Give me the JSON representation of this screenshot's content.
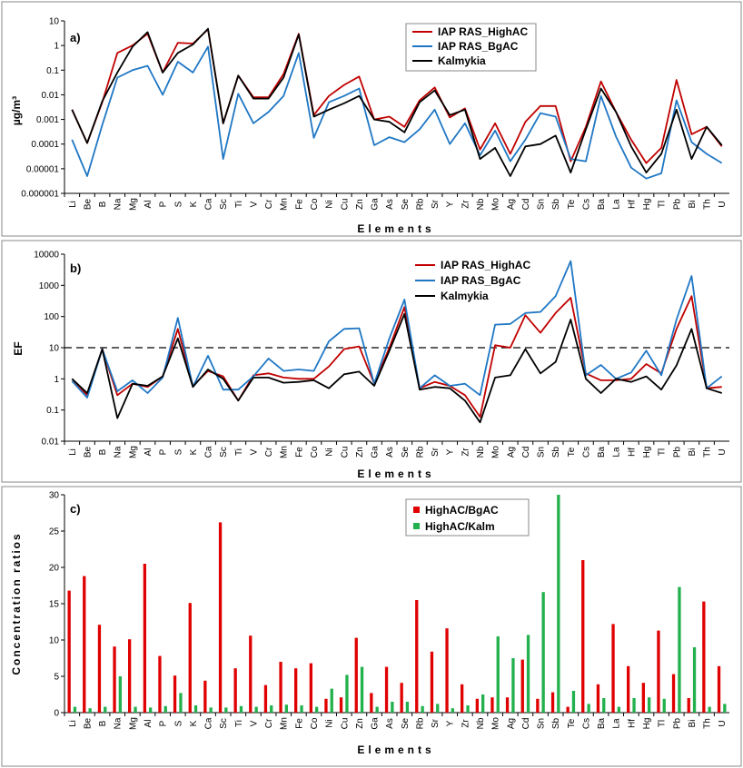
{
  "elements": [
    "Li",
    "Be",
    "B",
    "Na",
    "Mg",
    "Al",
    "P",
    "S",
    "K",
    "Ca",
    "Sc",
    "Ti",
    "V",
    "Cr",
    "Mn",
    "Fe",
    "Co",
    "Ni",
    "Cu",
    "Zn",
    "Ga",
    "As",
    "Se",
    "Rb",
    "Sr",
    "Y",
    "Zr",
    "Nb",
    "Mo",
    "Ag",
    "Cd",
    "Sn",
    "Sb",
    "Te",
    "Cs",
    "Ba",
    "La",
    "Hf",
    "Hg",
    "Tl",
    "Pb",
    "Bi",
    "Th",
    "U"
  ],
  "colors": {
    "high": "#c00000",
    "bg": "#1f77c4",
    "kalm": "#000000",
    "ratio1": "#e00000",
    "ratio2": "#22b14c"
  },
  "chart_data": [
    {
      "type": "line",
      "panel_label": "a)",
      "xlabel": "Elements",
      "ylabel": "µg/m³",
      "yscale": "log",
      "ylim": [
        1e-06,
        10
      ],
      "yticks": [
        "0.000001",
        "0.00001",
        "0.0001",
        "0.001",
        "0.01",
        "0.1",
        "1",
        "10"
      ],
      "legend_position": "top-right",
      "series": [
        {
          "name": "IAP RAS_HighAC",
          "color_key": "high",
          "values": [
            0.0025,
            0.00011,
            0.005,
            0.5,
            1.0,
            3.0,
            0.08,
            1.3,
            1.2,
            4.5,
            0.0007,
            0.06,
            0.008,
            0.008,
            0.07,
            3.0,
            0.0015,
            0.009,
            0.025,
            0.055,
            0.001,
            0.0013,
            0.0005,
            0.006,
            0.02,
            0.0012,
            0.0028,
            6e-05,
            0.0007,
            4e-05,
            0.0008,
            0.0035,
            0.0035,
            2e-05,
            0.0005,
            0.035,
            0.002,
            0.00015,
            1.7e-05,
            7e-05,
            0.04,
            0.00025,
            0.0005,
            8e-05
          ]
        },
        {
          "name": "IAP RAS_BgAC",
          "color_key": "bg",
          "values": [
            0.00015,
            5e-06,
            0.0006,
            0.05,
            0.1,
            0.15,
            0.01,
            0.22,
            0.08,
            0.9,
            2.5e-05,
            0.011,
            0.0007,
            0.002,
            0.009,
            0.5,
            0.00018,
            0.005,
            0.009,
            0.018,
            9e-05,
            0.00019,
            0.00012,
            0.0004,
            0.0025,
            0.0001,
            0.0007,
            3.5e-05,
            0.00035,
            2e-05,
            0.00015,
            0.0018,
            0.0013,
            2.5e-05,
            2e-05,
            0.009,
            0.0002,
            1.1e-05,
            4e-06,
            6.5e-06,
            0.006,
            0.00012,
            4e-05,
            1.7e-05
          ]
        },
        {
          "name": "Kalmykia",
          "color_key": "kalm",
          "values": [
            0.0025,
            0.00011,
            0.0055,
            0.08,
            0.9,
            3.5,
            0.08,
            0.5,
            1.1,
            4.8,
            0.0007,
            0.06,
            0.007,
            0.007,
            0.05,
            2.8,
            0.0013,
            0.0025,
            0.0045,
            0.009,
            0.001,
            0.0008,
            0.0003,
            0.005,
            0.015,
            0.0015,
            0.0025,
            2.5e-05,
            7e-05,
            5e-06,
            8e-05,
            0.0001,
            0.00022,
            7e-06,
            0.0004,
            0.018,
            0.002,
            8e-05,
            7e-06,
            4e-05,
            0.0025,
            2.5e-05,
            0.0005,
            9e-05
          ]
        }
      ]
    },
    {
      "type": "line",
      "panel_label": "b)",
      "xlabel": "Elements",
      "ylabel": "EF",
      "yscale": "log",
      "ylim": [
        0.01,
        10000
      ],
      "yticks": [
        "0.01",
        "0.1",
        "1",
        "10",
        "100",
        "1000",
        "10000"
      ],
      "reference_line": 10,
      "legend_position": "top-right",
      "series": [
        {
          "name": "IAP RAS_HighAC",
          "color_key": "high",
          "values": [
            1.0,
            0.3,
            9,
            0.3,
            0.7,
            0.55,
            1.2,
            40,
            0.6,
            1.8,
            1.2,
            0.2,
            1.3,
            1.5,
            1.1,
            1.0,
            1.0,
            2.5,
            9,
            11,
            0.7,
            10,
            200,
            0.5,
            0.8,
            0.6,
            0.3,
            0.06,
            12,
            10,
            110,
            30,
            130,
            400,
            1.5,
            0.9,
            0.9,
            1.0,
            3,
            1.5,
            40,
            450,
            0.5,
            0.55
          ]
        },
        {
          "name": "IAP RAS_BgAC",
          "color_key": "bg",
          "values": [
            0.85,
            0.25,
            9,
            0.4,
            0.9,
            0.35,
            1.1,
            90,
            0.55,
            5.5,
            0.45,
            0.45,
            1.2,
            4.5,
            1.8,
            2.0,
            1.8,
            16,
            40,
            42,
            0.7,
            20,
            350,
            0.5,
            1.3,
            0.6,
            0.7,
            0.3,
            55,
            58,
            130,
            140,
            450,
            6000,
            1.3,
            2.8,
            1.0,
            1.6,
            8,
            1.3,
            80,
            2000,
            0.5,
            1.2
          ]
        },
        {
          "name": "Kalmykia",
          "color_key": "kalm",
          "values": [
            1.0,
            0.35,
            9,
            0.055,
            0.7,
            0.6,
            1.2,
            20,
            0.55,
            2.0,
            1.0,
            0.2,
            1.1,
            1.1,
            0.75,
            0.8,
            0.9,
            0.5,
            1.4,
            1.7,
            0.6,
            8,
            120,
            0.45,
            0.55,
            0.5,
            0.2,
            0.04,
            1.1,
            1.3,
            9,
            1.5,
            3.5,
            80,
            1.0,
            0.35,
            1.0,
            0.8,
            1.2,
            0.45,
            2.7,
            40,
            0.5,
            0.35
          ]
        }
      ]
    },
    {
      "type": "bar",
      "panel_label": "c)",
      "xlabel": "Elements",
      "ylabel": "Concentration ratios",
      "ylim": [
        0,
        30
      ],
      "yticks": [
        "0",
        "5",
        "10",
        "15",
        "20",
        "25",
        "30"
      ],
      "legend_position": "top-right",
      "series": [
        {
          "name": "HighAC/BgAC",
          "color_key": "ratio1",
          "values": [
            16.8,
            18.8,
            12.1,
            9.1,
            10.1,
            20.5,
            7.8,
            5.1,
            15.1,
            4.4,
            26.2,
            6.1,
            10.6,
            3.8,
            7.0,
            6.1,
            6.8,
            1.9,
            2.1,
            10.3,
            2.7,
            6.3,
            4.1,
            15.5,
            8.4,
            11.6,
            3.9,
            1.9,
            2.1,
            2.1,
            7.3,
            1.9,
            2.8,
            0.8,
            21.0,
            3.9,
            12.2,
            6.4,
            4.1,
            11.3,
            5.3,
            2.0,
            15.3,
            6.4
          ]
        },
        {
          "name": "HighAC/Kalm",
          "color_key": "ratio2",
          "values": [
            0.8,
            0.6,
            0.8,
            5.0,
            0.8,
            0.7,
            0.9,
            2.7,
            1.0,
            0.7,
            0.7,
            0.9,
            0.8,
            1.0,
            1.1,
            1.0,
            0.8,
            3.3,
            5.2,
            6.3,
            0.8,
            1.5,
            1.5,
            0.9,
            1.2,
            0.6,
            1.0,
            2.5,
            10.5,
            7.5,
            10.7,
            16.6,
            30.0,
            3.0,
            1.2,
            2.0,
            0.8,
            2.0,
            2.1,
            1.9,
            17.3,
            9.0,
            0.8,
            1.2
          ]
        }
      ]
    }
  ]
}
